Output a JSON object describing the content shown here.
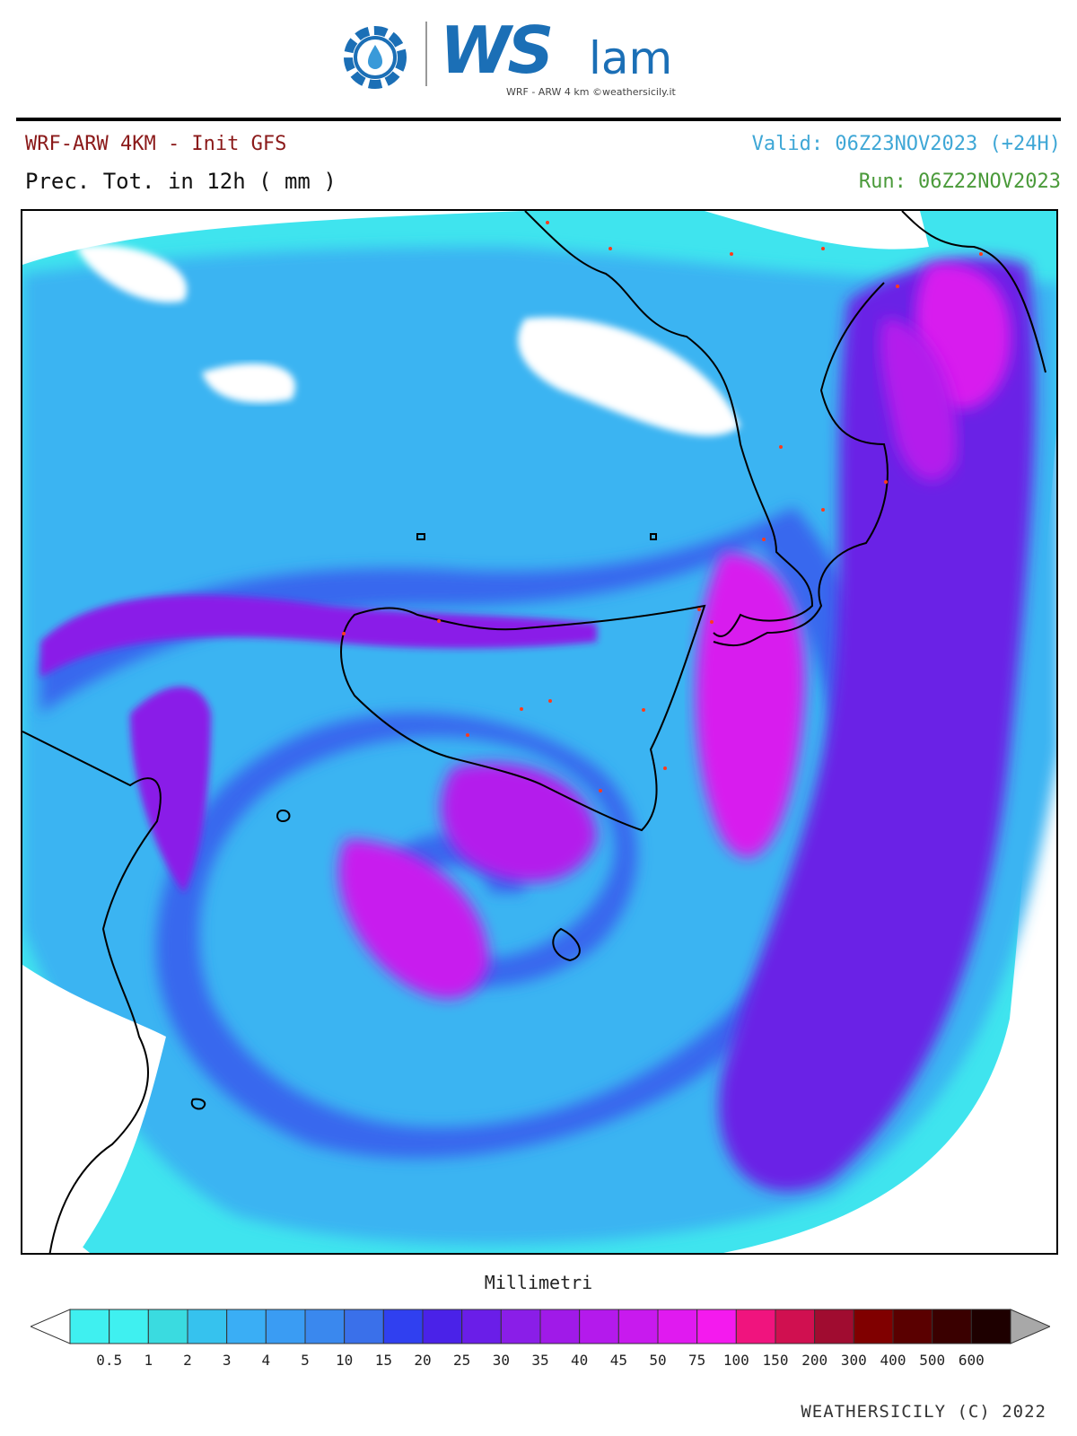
{
  "logo": {
    "brand_ws": "WS",
    "brand_lam": "lam",
    "subtitle": "WRF - ARW 4 km ©weathersicily.it"
  },
  "header": {
    "model": "WRF-ARW 4KM - Init GFS",
    "field": "Prec. Tot. in 12h ( mm )",
    "valid": "Valid: 06Z23NOV2023 (+24H)",
    "run": "Run: 06Z22NOV2023",
    "colors": {
      "model": "#8b1a1a",
      "valid": "#3fa7d6",
      "run": "#4a9a3a",
      "field": "#111111"
    }
  },
  "colorbar": {
    "title": "Millimetri",
    "labels": [
      "0.5",
      "1",
      "2",
      "3",
      "4",
      "5",
      "10",
      "15",
      "20",
      "25",
      "30",
      "35",
      "40",
      "45",
      "50",
      "75",
      "100",
      "150",
      "200",
      "300",
      "400",
      "500",
      "600"
    ],
    "colors": [
      "#3ff0f0",
      "#3adbe0",
      "#36c2ee",
      "#3aaef5",
      "#3a9cf3",
      "#3a88ee",
      "#3a70ea",
      "#3040f0",
      "#4a22e8",
      "#6a1ee8",
      "#8a1ee8",
      "#a01ae8",
      "#b41aec",
      "#c81aee",
      "#e01af0",
      "#f41aee",
      "#f0147e",
      "#d01050",
      "#a00c30",
      "#800000",
      "#5a0000",
      "#3a0000",
      "#1e0000"
    ],
    "under_color": "#ffffff",
    "over_color": "#a8a8a8"
  },
  "footer": "WEATHERSICILY (C) 2022"
}
